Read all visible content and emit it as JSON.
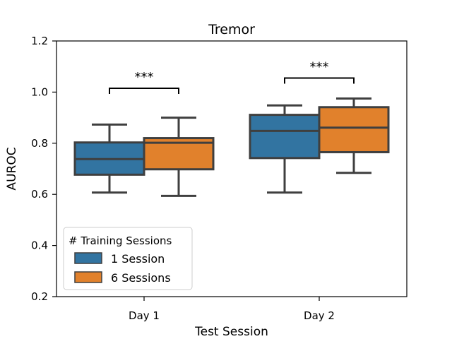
{
  "chart_data": {
    "type": "box",
    "title": "Tremor",
    "xlabel": "Test Session",
    "ylabel": "AUROC",
    "ylim": [
      0.2,
      1.2
    ],
    "yticks": [
      "0.2",
      "0.4",
      "0.6",
      "0.8",
      "1.0",
      "1.2"
    ],
    "categories": [
      "Day 1",
      "Day 2"
    ],
    "grid": false,
    "legend": {
      "title": "# Training Sessions",
      "position": "lower-left"
    },
    "series": [
      {
        "name": "1 Session",
        "color": "#3274a1",
        "boxes": [
          {
            "whisker_low": 0.607,
            "q1": 0.677,
            "median": 0.738,
            "q3": 0.803,
            "whisker_high": 0.873
          },
          {
            "whisker_low": 0.607,
            "q1": 0.742,
            "median": 0.848,
            "q3": 0.911,
            "whisker_high": 0.948
          }
        ]
      },
      {
        "name": "6 Sessions",
        "color": "#e1812c",
        "boxes": [
          {
            "whisker_low": 0.594,
            "q1": 0.698,
            "median": 0.802,
            "q3": 0.82,
            "whisker_high": 0.9
          },
          {
            "whisker_low": 0.684,
            "q1": 0.765,
            "median": 0.861,
            "q3": 0.941,
            "whisker_high": 0.975
          }
        ]
      }
    ],
    "annotations": [
      {
        "category_index": 0,
        "text": "***",
        "y": 1.015
      },
      {
        "category_index": 1,
        "text": "***",
        "y": 1.055
      }
    ]
  }
}
